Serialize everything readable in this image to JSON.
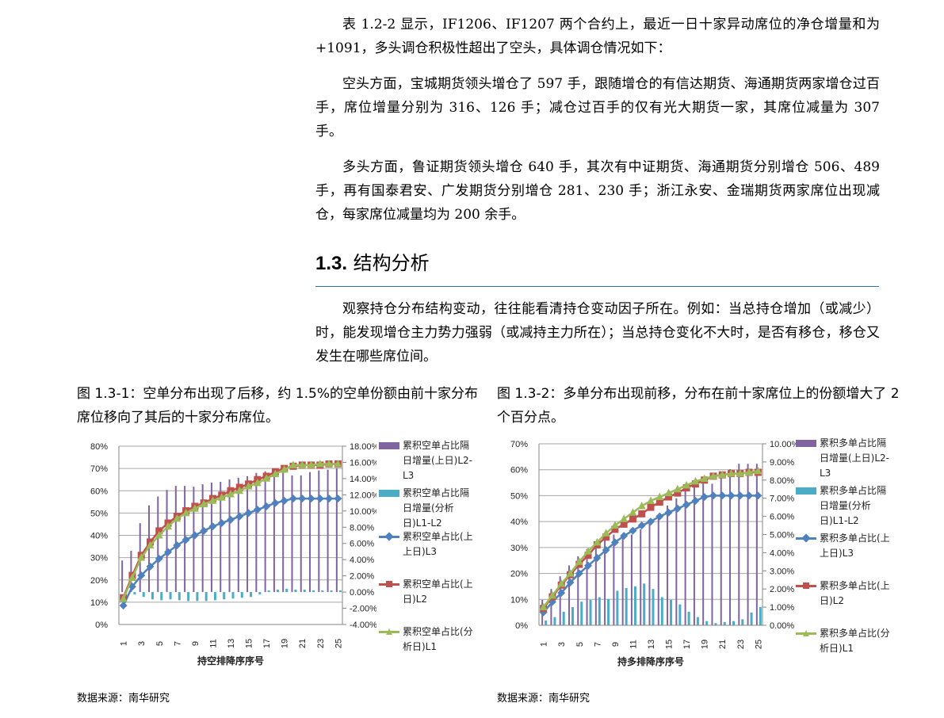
{
  "paragraphs_top": [
    "表 1.2-2 显示，IF1206、IF1207 两个合约上，最近一日十家异动席位的净仓增量和为+1091，多头调仓积极性超出了空头，具体调仓情况如下：",
    "空头方面，宝城期货领头增仓了 597 手，跟随增仓的有信达期货、海通期货两家增仓过百手，席位增量分别为 316、126 手；减仓过百手的仅有光大期货一家，其席位减量为 307 手。",
    "多头方面，鲁证期货领头增仓 640 手，其次有中证期货、海通期货分别增仓 506、489 手，再有国泰君安、广发期货分别增仓 281、230 手；浙江永安、金瑞期货两家席位出现减仓，每家席位减量均为 200 余手。"
  ],
  "section": {
    "number": "1.3.",
    "title": "结构分析"
  },
  "paragraph_section": "观察持仓分布结构变动，往往能看清持仓变动因子所在。例如：当总持仓增加（或减少）时，能发现增仓主力势力强弱（或减持主力所在）；当总持仓变化不大时，是否有移仓，移仓又发生在哪些席位间。",
  "figures": [
    {
      "caption": "图 1.3-1：空单分布出现了后移，约 1.5%的空单份额由前十家分布席位移向了其后的十家分布席位。",
      "source": "数据来源：南华研究"
    },
    {
      "caption": "图 1.3-2：多单分布出现前移，分布在前十家席位上的份额增大了 2 个百分点。",
      "source": "数据来源：南华研究"
    }
  ],
  "colors": {
    "purple": "#8064a2",
    "cyan": "#4bacc6",
    "blue": "#4f81bd",
    "red": "#c0504d",
    "green": "#9bbb59",
    "rule": "#2e74b5"
  },
  "chart_data": [
    {
      "type": "bar+line",
      "xlabel": "持空排降序序号",
      "x": [
        1,
        2,
        3,
        4,
        5,
        6,
        7,
        8,
        9,
        10,
        11,
        12,
        13,
        14,
        15,
        16,
        17,
        18,
        19,
        20,
        21,
        22,
        23,
        24,
        25
      ],
      "x_tick_labels": [
        "1",
        "3",
        "5",
        "7",
        "9",
        "11",
        "13",
        "15",
        "17",
        "19",
        "21",
        "23",
        "25"
      ],
      "ylim_left": [
        0,
        80
      ],
      "yticks_left": [
        "0%",
        "10%",
        "20%",
        "30%",
        "40%",
        "50%",
        "60%",
        "70%",
        "80%"
      ],
      "ylim_right": [
        -4,
        18
      ],
      "yticks_right": [
        "-4.00%",
        "-2.00%",
        "0.00%",
        "2.00%",
        "4.00%",
        "6.00%",
        "8.00%",
        "10.00%",
        "12.00%",
        "14.00%",
        "16.00%",
        "18.00%"
      ],
      "grid": true,
      "legend": "right",
      "series": [
        {
          "name": "累积空单占比隔日增量(上日)L2-L3",
          "kind": "bar",
          "axis": "right",
          "color": "#8064a2",
          "marker": "",
          "values": [
            3.9,
            5.1,
            8.5,
            10.7,
            11.8,
            12.6,
            13.1,
            13.1,
            13.0,
            13.3,
            13.5,
            13.6,
            13.9,
            14.1,
            14.3,
            14.7,
            14.9,
            15.0,
            15.3,
            14.4,
            14.4,
            14.8,
            15.0,
            15.1,
            15.3
          ]
        },
        {
          "name": "累积空单占比隔日增量(分析日)L1-L2",
          "kind": "bar",
          "axis": "right",
          "color": "#4bacc6",
          "marker": "",
          "values": [
            -0.2,
            -0.3,
            -0.6,
            -0.9,
            -1.0,
            -0.9,
            -1.0,
            -1.1,
            -1.1,
            -1.1,
            -1.0,
            -0.9,
            -0.8,
            -0.7,
            -0.6,
            -0.3,
            0.2,
            0.3,
            0.4,
            0.3,
            0.3,
            0.2,
            0.2,
            0.2,
            0.2
          ]
        },
        {
          "name": "累积空单占比(上上日)L3",
          "kind": "line",
          "axis": "left",
          "color": "#4f81bd",
          "marker": "diamond",
          "values": [
            8.5,
            17,
            22,
            26,
            29.5,
            32.5,
            35.5,
            38,
            40,
            42,
            44,
            45.5,
            47,
            48.5,
            50,
            51.5,
            53,
            54.5,
            55.5,
            56.5,
            56.5,
            56.5,
            56.5,
            56.5,
            56.5
          ]
        },
        {
          "name": "累积空单占比(上日)L2",
          "kind": "line",
          "axis": "left",
          "color": "#c0504d",
          "marker": "square",
          "values": [
            12,
            22,
            31,
            37,
            42,
            45.5,
            48.5,
            51,
            53,
            54.5,
            56.5,
            58,
            60,
            61.5,
            63,
            65,
            66.5,
            68.5,
            70,
            71,
            71.5,
            71.5,
            71.5,
            72,
            72
          ]
        },
        {
          "name": "累积空单占比(分析日)L1",
          "kind": "line",
          "axis": "left",
          "color": "#9bbb59",
          "marker": "triangle",
          "values": [
            11.5,
            21,
            30,
            35.5,
            40,
            44,
            47.5,
            50,
            52,
            54,
            55.5,
            57,
            58.5,
            60,
            62,
            63.5,
            65.5,
            67.5,
            69.5,
            71.5,
            71.5,
            71.5,
            72,
            72,
            72
          ]
        }
      ]
    },
    {
      "type": "bar+line",
      "xlabel": "持多排降序序号",
      "x": [
        1,
        2,
        3,
        4,
        5,
        6,
        7,
        8,
        9,
        10,
        11,
        12,
        13,
        14,
        15,
        16,
        17,
        18,
        19,
        20,
        21,
        22,
        23,
        24,
        25
      ],
      "x_tick_labels": [
        "1",
        "3",
        "5",
        "7",
        "9",
        "11",
        "13",
        "15",
        "17",
        "19",
        "21",
        "23",
        "25"
      ],
      "ylim_left": [
        0,
        70
      ],
      "yticks_left": [
        "0%",
        "10%",
        "20%",
        "30%",
        "40%",
        "50%",
        "60%",
        "70%"
      ],
      "ylim_right": [
        0,
        10
      ],
      "yticks_right": [
        "0.00%",
        "1.00%",
        "2.00%",
        "3.00%",
        "4.00%",
        "5.00%",
        "6.00%",
        "7.00%",
        "8.00%",
        "9.00%",
        "10.00%"
      ],
      "grid": true,
      "legend": "right",
      "series": [
        {
          "name": "累积多单占比隔日增量(上日)L2-L3",
          "kind": "bar",
          "axis": "right",
          "color": "#8064a2",
          "marker": "",
          "values": [
            1.4,
            2.0,
            2.7,
            3.3,
            3.8,
            4.2,
            4.6,
            4.9,
            5.0,
            4.8,
            5.0,
            5.3,
            5.8,
            6.1,
            6.6,
            7.0,
            7.4,
            7.6,
            7.8,
            7.8,
            8.3,
            8.6,
            8.9,
            8.9,
            8.9
          ]
        },
        {
          "name": "累积多单占比隔日增量(分析日)L1-L2",
          "kind": "bar",
          "axis": "right",
          "color": "#4bacc6",
          "marker": "",
          "values": [
            0.26,
            0.45,
            0.75,
            1.0,
            1.3,
            1.4,
            1.55,
            1.45,
            1.9,
            2.05,
            2.15,
            2.3,
            2.0,
            1.55,
            1.4,
            1.15,
            0.75,
            0.45,
            0.23,
            0.12,
            0.18,
            0.23,
            0.33,
            0.7,
            1.0
          ]
        },
        {
          "name": "累积多单占比(上上日)L3",
          "kind": "line",
          "axis": "left",
          "color": "#4f81bd",
          "marker": "diamond",
          "values": [
            5,
            9,
            12.5,
            16.5,
            20,
            23,
            26,
            29,
            32,
            34.5,
            36.5,
            38.5,
            40,
            42,
            43.5,
            45,
            46.5,
            48,
            49.5,
            50,
            50,
            50,
            50,
            50,
            50
          ]
        },
        {
          "name": "累积多单占比(上日)L2",
          "kind": "line",
          "axis": "left",
          "color": "#c0504d",
          "marker": "square",
          "values": [
            6.5,
            11,
            15.5,
            19.5,
            23.5,
            27,
            31,
            34,
            37,
            39,
            41,
            43,
            45.5,
            47.5,
            49.5,
            51,
            53,
            54.5,
            56,
            57.5,
            58,
            58.5,
            58.5,
            59,
            59
          ]
        },
        {
          "name": "累积多单占比(分析日)L1",
          "kind": "line",
          "axis": "left",
          "color": "#9bbb59",
          "marker": "triangle",
          "values": [
            7,
            11.5,
            16,
            20,
            24.5,
            28.5,
            32,
            35.5,
            38.5,
            41,
            43.5,
            46,
            48,
            49.5,
            51,
            52.5,
            54,
            55.5,
            56.5,
            57.5,
            58,
            58.5,
            58.5,
            59,
            59.5
          ]
        }
      ]
    }
  ]
}
